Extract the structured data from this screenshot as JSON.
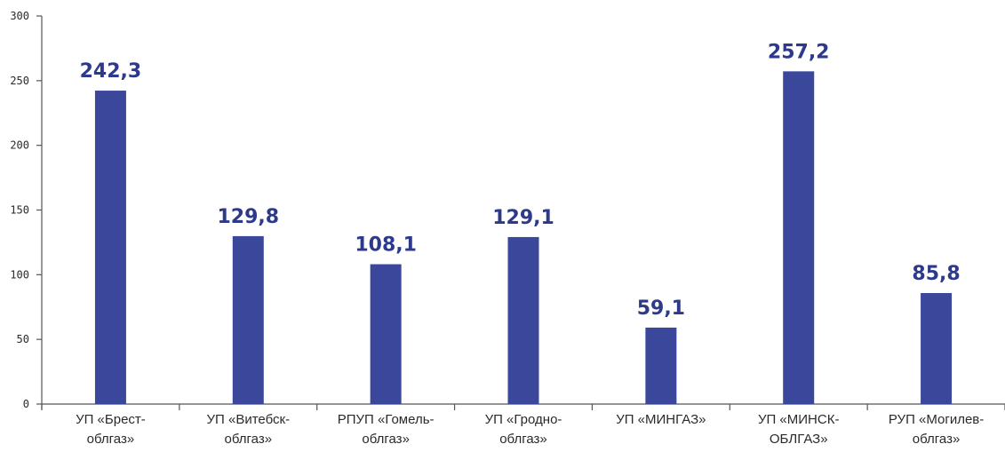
{
  "chart_data": {
    "type": "bar",
    "categories": [
      [
        "УП «Брест-",
        "облгаз»"
      ],
      [
        "УП «Витебск-",
        "облгаз»"
      ],
      [
        "РПУП «Гомель-",
        "облгаз»"
      ],
      [
        "УП «Гродно-",
        "облгаз»"
      ],
      [
        "УП «МИНГАЗ»"
      ],
      [
        "УП «МИНСК-",
        "ОБЛГАЗ»"
      ],
      [
        "РУП «Могилев-",
        "облгаз»"
      ]
    ],
    "values": [
      242.3,
      129.8,
      108.1,
      129.1,
      59.1,
      257.2,
      85.8
    ],
    "value_labels": [
      "242,3",
      "129,8",
      "108,1",
      "129,1",
      "59,1",
      "257,2",
      "85,8"
    ],
    "yticks": [
      0,
      50,
      100,
      150,
      200,
      250,
      300
    ],
    "ylim": [
      0,
      300
    ],
    "title": "",
    "xlabel": "",
    "ylabel": "",
    "grid": false,
    "legend": "none",
    "colors": {
      "bar": "#3a479b",
      "value_label": "#2d3a8c",
      "axis": "#555555"
    }
  }
}
